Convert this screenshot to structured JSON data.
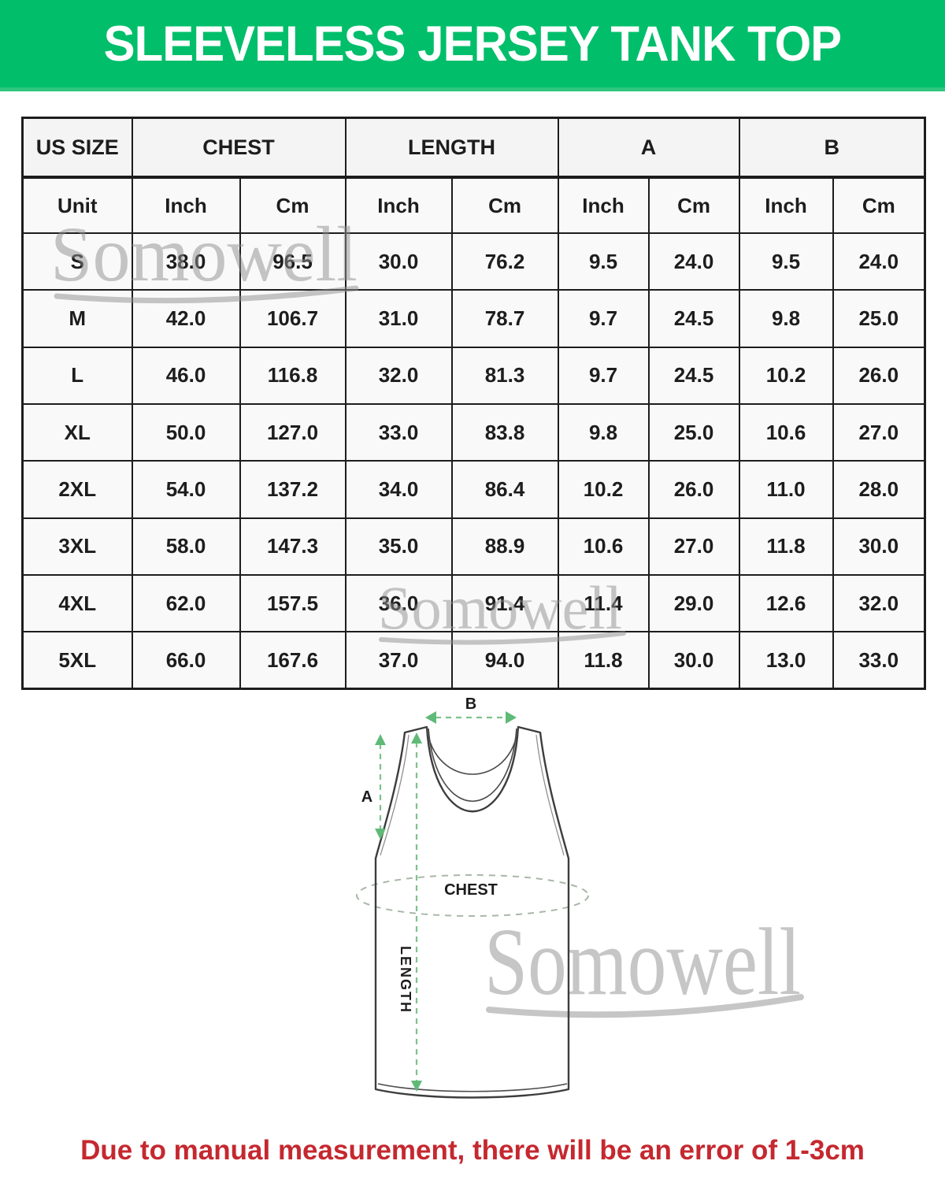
{
  "header": {
    "title": "SLEEVELESS JERSEY TANK TOP"
  },
  "colors": {
    "banner_green": "#00be6a",
    "note_red": "#c5282f",
    "watermark_gray": "#8f8f8f",
    "diagram_green": "#7cc28c",
    "border_black": "#1d1d1d"
  },
  "watermark": {
    "text": "Somowell"
  },
  "size_table": {
    "groups": [
      {
        "label": "US SIZE",
        "span": 1
      },
      {
        "label": "CHEST",
        "span": 2
      },
      {
        "label": "LENGTH",
        "span": 2
      },
      {
        "label": "A",
        "span": 2
      },
      {
        "label": "B",
        "span": 2
      }
    ],
    "unit_row": [
      "Unit",
      "Inch",
      "Cm",
      "Inch",
      "Cm",
      "Inch",
      "Cm",
      "Inch",
      "Cm"
    ],
    "rows": [
      {
        "size": "S",
        "values": [
          "38.0",
          "96.5",
          "30.0",
          "76.2",
          "9.5",
          "24.0",
          "9.5",
          "24.0"
        ]
      },
      {
        "size": "M",
        "values": [
          "42.0",
          "106.7",
          "31.0",
          "78.7",
          "9.7",
          "24.5",
          "9.8",
          "25.0"
        ]
      },
      {
        "size": "L",
        "values": [
          "46.0",
          "116.8",
          "32.0",
          "81.3",
          "9.7",
          "24.5",
          "10.2",
          "26.0"
        ]
      },
      {
        "size": "XL",
        "values": [
          "50.0",
          "127.0",
          "33.0",
          "83.8",
          "9.8",
          "25.0",
          "10.6",
          "27.0"
        ]
      },
      {
        "size": "2XL",
        "values": [
          "54.0",
          "137.2",
          "34.0",
          "86.4",
          "10.2",
          "26.0",
          "11.0",
          "28.0"
        ]
      },
      {
        "size": "3XL",
        "values": [
          "58.0",
          "147.3",
          "35.0",
          "88.9",
          "10.6",
          "27.0",
          "11.8",
          "30.0"
        ]
      },
      {
        "size": "4XL",
        "values": [
          "62.0",
          "157.5",
          "36.0",
          "91.4",
          "11.4",
          "29.0",
          "12.6",
          "32.0"
        ]
      },
      {
        "size": "5XL",
        "values": [
          "66.0",
          "167.6",
          "37.0",
          "94.0",
          "11.8",
          "30.0",
          "13.0",
          "33.0"
        ]
      }
    ]
  },
  "diagram": {
    "labels": {
      "a": "A",
      "b": "B",
      "chest": "CHEST",
      "length": "LENGTH"
    }
  },
  "note": {
    "text": "Due to manual measurement, there will be an error of 1-3cm"
  }
}
